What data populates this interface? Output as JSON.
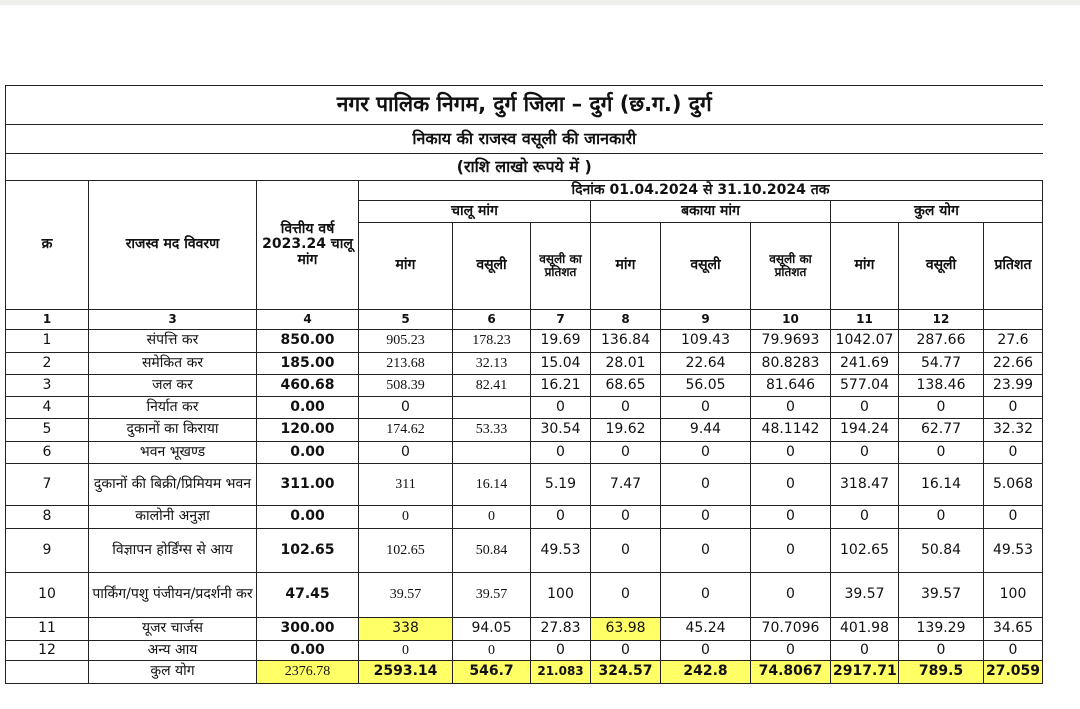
{
  "header": {
    "title": "नगर पालिक निगम, दुर्ग जिला – दुर्ग (छ.ग.) दुर्ग",
    "subtitle": "निकाय की राजस्व वसूली की जानकारी",
    "unit_note": "(राशि लाखो रूपये में )"
  },
  "table": {
    "columns": {
      "serial": "क्र",
      "item": "राजस्व मद विवरण",
      "fy_demand": "वित्तीय वर्ष 2023.24 चालू मांग",
      "period": "दिनांक 01.04.2024 से 31.10.2024 तक",
      "groups": [
        "चालू मांग",
        "बकाया मांग",
        "कुल योग"
      ],
      "subcolumns": [
        "मांग",
        "वसूली",
        "वसूली का प्रतिशत",
        "मांग",
        "वसूली",
        "वसूली का प्रतिशत",
        "मांग",
        "वसूली",
        "प्रतिशत"
      ]
    },
    "column_numbers": [
      "1",
      "3",
      "4",
      "5",
      "6",
      "7",
      "8",
      "9",
      "10",
      "11",
      "12"
    ],
    "rows": [
      [
        "1",
        "संपत्ति कर",
        "850.00",
        "905.23",
        "178.23",
        "19.69",
        "136.84",
        "109.43",
        "79.9693",
        "1042.07",
        "287.66",
        "27.6"
      ],
      [
        "2",
        "समेकित कर",
        "185.00",
        "213.68",
        "32.13",
        "15.04",
        "28.01",
        "22.64",
        "80.8283",
        "241.69",
        "54.77",
        "22.66"
      ],
      [
        "3",
        "जल कर",
        "460.68",
        "508.39",
        "82.41",
        "16.21",
        "68.65",
        "56.05",
        "81.646",
        "577.04",
        "138.46",
        "23.99"
      ],
      [
        "4",
        "निर्यात कर",
        "0.00",
        "0",
        null,
        "0",
        "0",
        "0",
        "0",
        "0",
        "0",
        "0"
      ],
      [
        "5",
        "दुकानों का किराया",
        "120.00",
        "174.62",
        "53.33",
        "30.54",
        "19.62",
        "9.44",
        "48.1142",
        "194.24",
        "62.77",
        "32.32"
      ],
      [
        "6",
        "भवन भूखण्ड",
        "0.00",
        "0",
        null,
        "0",
        "0",
        "0",
        "0",
        "0",
        "0",
        "0"
      ],
      [
        "7",
        "दुकानों की बिक्री/प्रिमियम भवन",
        "311.00",
        "311",
        "16.14",
        "5.19",
        "7.47",
        "0",
        "0",
        "318.47",
        "16.14",
        "5.068"
      ],
      [
        "8",
        "कालोनी अनुज्ञा",
        "0.00",
        "0",
        "0",
        "0",
        "0",
        "0",
        "0",
        "0",
        "0",
        "0"
      ],
      [
        "9",
        "विज्ञापन होर्डिंग्स से आय",
        "102.65",
        "102.65",
        "50.84",
        "49.53",
        "0",
        "0",
        "0",
        "102.65",
        "50.84",
        "49.53"
      ],
      [
        "10",
        "पार्किंग/पशु पंजीयन/प्रदर्शनी कर",
        "47.45",
        "39.57",
        "39.57",
        "100",
        "0",
        "0",
        "0",
        "39.57",
        "39.57",
        "100"
      ],
      [
        "11",
        "यूजर चार्जस",
        "300.00",
        "338",
        "94.05",
        "27.83",
        "63.98",
        "45.24",
        "70.7096",
        "401.98",
        "139.29",
        "34.65"
      ],
      [
        "12",
        "अन्य आय",
        "0.00",
        "0",
        "0",
        "0",
        "0",
        "0",
        "0",
        "0",
        "0",
        "0"
      ]
    ],
    "total": {
      "label": "कुल योग",
      "values": [
        "2376.78",
        "2593.14",
        "546.7",
        "21.083",
        "324.57",
        "242.8",
        "74.8067",
        "2917.71",
        "789.5",
        "27.059"
      ]
    }
  }
}
